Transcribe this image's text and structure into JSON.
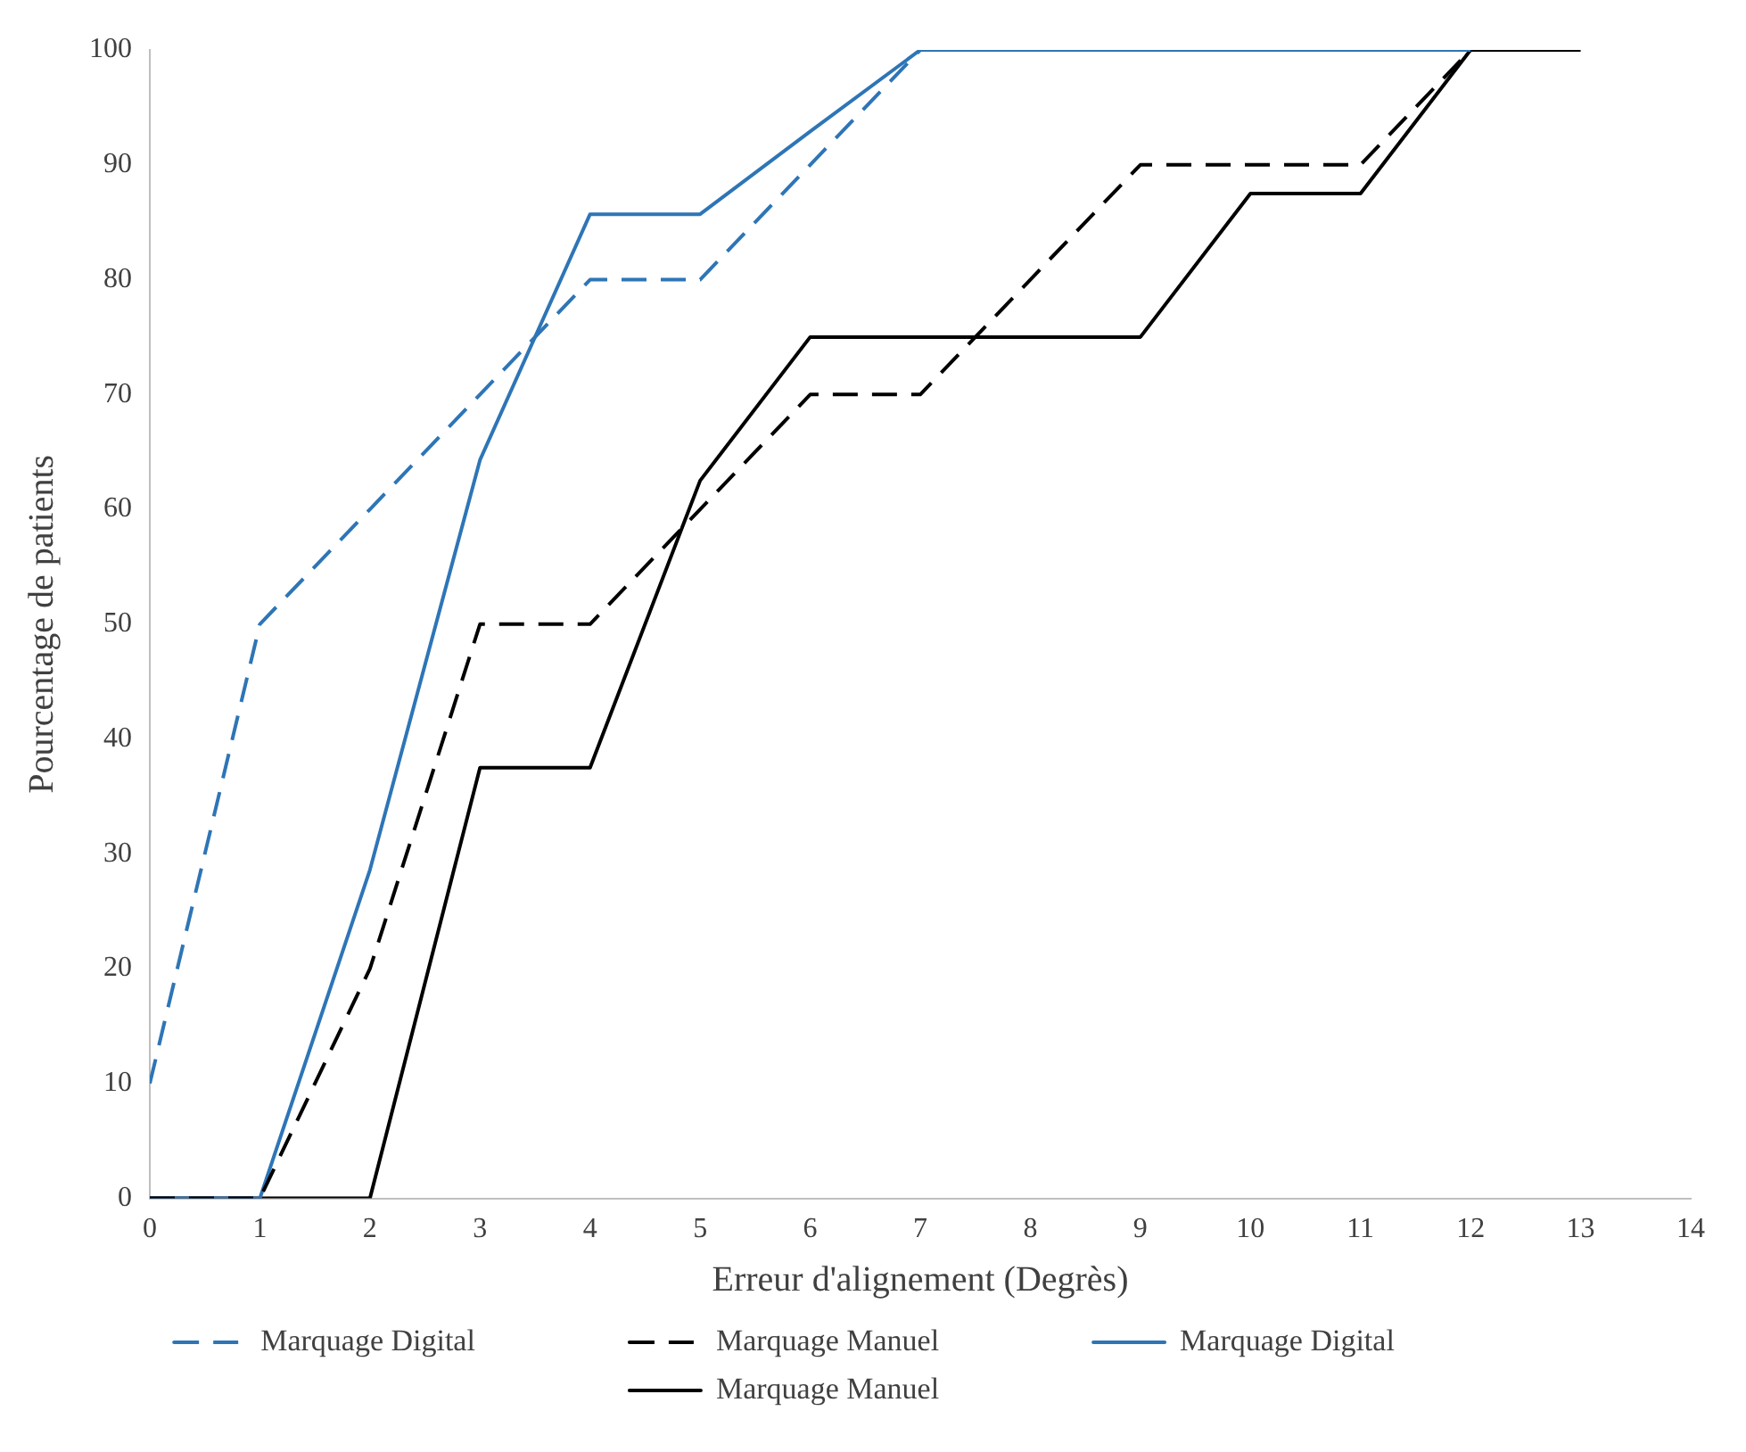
{
  "chart_data": {
    "type": "line",
    "xlabel": "Erreur d'alignement (Degrès)",
    "ylabel": "Pourcentage de patients",
    "x": [
      0,
      1,
      2,
      3,
      4,
      5,
      6,
      7,
      8,
      9,
      10,
      11,
      12,
      13
    ],
    "xlim": [
      0,
      14
    ],
    "xticks": [
      0,
      1,
      2,
      3,
      4,
      5,
      6,
      7,
      8,
      9,
      10,
      11,
      12,
      13,
      14
    ],
    "ylim": [
      0,
      100
    ],
    "yticks": [
      0,
      10,
      20,
      30,
      40,
      50,
      60,
      70,
      80,
      90,
      100
    ],
    "grid": false,
    "legend": "bottom",
    "marker": "none",
    "series": [
      {
        "name": "Marquage Digital",
        "color": "#2e75b6",
        "line_style": "dashed",
        "values": [
          10,
          50,
          60,
          70,
          80,
          80,
          90,
          100,
          100,
          100,
          100,
          100,
          100,
          null
        ]
      },
      {
        "name": "Marquage Manuel",
        "color": "#000000",
        "line_style": "dashed",
        "values": [
          0,
          0,
          20,
          50,
          50,
          60,
          70,
          70,
          80,
          90,
          90,
          90,
          100,
          100
        ]
      },
      {
        "name": "Marquage Digital",
        "color": "#2e75b6",
        "line_style": "solid",
        "values": [
          0,
          0,
          28.6,
          64.3,
          85.7,
          85.7,
          92.9,
          100,
          100,
          100,
          100,
          100,
          100,
          null
        ]
      },
      {
        "name": "Marquage Manuel",
        "color": "#000000",
        "line_style": "solid",
        "values": [
          0,
          0,
          0,
          37.5,
          37.5,
          62.5,
          75,
          75,
          75,
          75,
          87.5,
          87.5,
          100,
          100
        ]
      }
    ]
  }
}
